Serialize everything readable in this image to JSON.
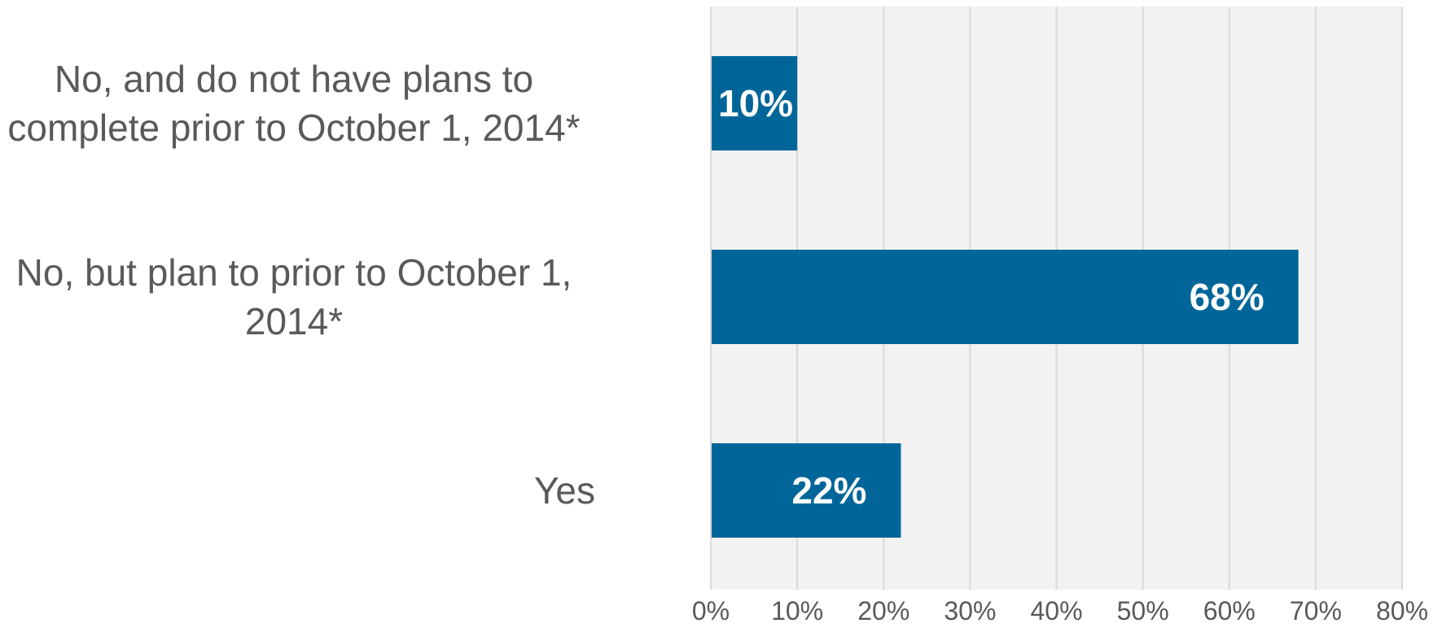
{
  "chart_data": {
    "type": "bar",
    "orientation": "horizontal",
    "categories": [
      "No, and do not have plans to complete prior to October 1, 2014*",
      "No, but plan to prior to October 1, 2014*",
      "Yes"
    ],
    "values": [
      10,
      68,
      22
    ],
    "data_labels": [
      "10%",
      "68%",
      "22%"
    ],
    "xlim": [
      0,
      80
    ],
    "x_ticks": [
      0,
      10,
      20,
      30,
      40,
      50,
      60,
      70,
      80
    ],
    "x_tick_labels": [
      "0%",
      "10%",
      "20%",
      "30%",
      "40%",
      "50%",
      "60%",
      "70%",
      "80%"
    ],
    "grid": true,
    "title": "",
    "xlabel": "",
    "ylabel": ""
  },
  "colors": {
    "bar": "#006699",
    "plot_background": "#f2f2f2",
    "gridline": "#d9d9d9",
    "text": "#595959",
    "data_label": "#ffffff"
  }
}
